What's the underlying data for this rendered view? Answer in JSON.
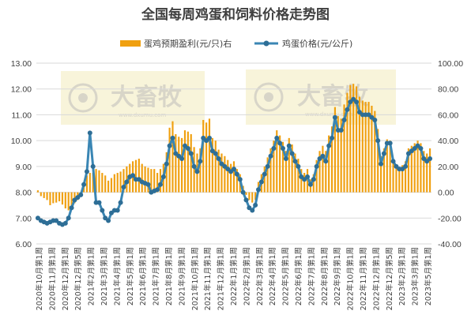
{
  "chart_data": {
    "type": "bar+line",
    "title": "全国每周鸡蛋和饲料价格走势图",
    "watermark": {
      "text": "大畜牧",
      "url": "www.dxumu.com"
    },
    "legend": {
      "placement": "top",
      "bar_label": "蛋鸡预期盈利(元/只)右",
      "line_label": "鸡蛋价格(元/公斤)"
    },
    "colors": {
      "bar": "#f0a010",
      "line": "#3a86b4",
      "marker": "#2e6e96",
      "watermark_bg": "#f7f3d6"
    },
    "left_axis": {
      "min": 6,
      "max": 13,
      "step": 1,
      "decimals": 2,
      "tick_labels": [
        "6.00",
        "7.00",
        "8.00",
        "9.00",
        "10.00",
        "11.00",
        "12.00",
        "13.00"
      ]
    },
    "right_axis": {
      "min": -40,
      "max": 100,
      "step": 20,
      "decimals": 2,
      "tick_labels": [
        "-40.00",
        "-20.00",
        "0.00",
        "20.00",
        "40.00",
        "60.00",
        "80.00",
        "100.00"
      ]
    },
    "x_labels": [
      "2020年10月第1周",
      "2020年11月第1周",
      "2020年12月第1周",
      "2020年12月第5周",
      "2021年2月第1周",
      "2021年3月第1周",
      "2021年4月第1周",
      "2021年5月第1周",
      "2021年6月第1周",
      "2021年7月第1周",
      "2021年8月第1周",
      "2021年9月第1周",
      "2021年10月第1周",
      "2021年11月第1周",
      "2021年12月第1周",
      "2022年1月第1周",
      "2022年2月第1周",
      "2022年3月第1周",
      "2022年4月第1周",
      "2022年5月第1周",
      "2022年6月第1周",
      "2022年7月第1周",
      "2022年8月第1周",
      "2022年9月第1周",
      "2022年10月第1周",
      "2022年11月第1周",
      "2022年12月第1周",
      "2022年12月第5周",
      "2023年2月第1周",
      "2023年3月第1周",
      "2023年5月第1周"
    ],
    "egg_price": [
      7.0,
      6.9,
      6.85,
      6.8,
      6.85,
      6.9,
      6.9,
      6.8,
      6.75,
      6.8,
      7.0,
      7.4,
      7.7,
      7.8,
      7.9,
      8.3,
      8.8,
      10.3,
      9.0,
      7.6,
      7.6,
      7.3,
      7.0,
      6.9,
      7.2,
      7.3,
      7.3,
      7.6,
      8.2,
      8.4,
      8.6,
      8.65,
      8.5,
      8.5,
      8.4,
      8.35,
      8.3,
      8.0,
      8.05,
      8.1,
      8.3,
      8.6,
      9.1,
      9.8,
      10.1,
      9.5,
      9.4,
      9.3,
      9.8,
      9.7,
      9.5,
      9.0,
      8.8,
      9.2,
      10.1,
      10.0,
      10.1,
      9.6,
      9.5,
      9.3,
      9.1,
      9.0,
      8.9,
      8.8,
      8.9,
      8.7,
      8.5,
      8.0,
      7.7,
      7.4,
      7.3,
      7.5,
      8.1,
      8.4,
      8.7,
      9.0,
      9.4,
      9.7,
      10.1,
      9.9,
      9.7,
      9.3,
      9.8,
      9.5,
      9.2,
      9.0,
      8.6,
      8.5,
      8.6,
      8.3,
      8.5,
      9.0,
      9.3,
      9.4,
      9.2,
      9.8,
      10.1,
      10.9,
      10.4,
      10.4,
      10.8,
      11.2,
      11.5,
      11.6,
      11.5,
      11.1,
      11.0,
      11.0,
      11.0,
      10.9,
      10.8,
      10.0,
      9.1,
      9.5,
      9.9,
      9.9,
      9.2,
      9.0,
      8.9,
      8.9,
      9.0,
      9.5,
      9.6,
      9.7,
      9.8,
      9.7,
      9.3,
      9.2,
      9.3
    ],
    "layer_profit": [
      1.5,
      -3.0,
      -4.5,
      -6.0,
      -10.0,
      -8.5,
      -8.0,
      -7.0,
      -9.5,
      -12.5,
      -14.0,
      -12.0,
      -8.5,
      -6.0,
      -3.0,
      6.0,
      13.0,
      15.0,
      15.0,
      18.0,
      17.0,
      15.0,
      13.0,
      9.0,
      11.0,
      14.0,
      15.0,
      16.0,
      18.0,
      20.0,
      22.0,
      24.0,
      25.0,
      26.0,
      22.0,
      20.0,
      19.0,
      18.0,
      18.0,
      15.0,
      18.0,
      22.0,
      31.0,
      50.0,
      55.0,
      45.0,
      43.0,
      42.0,
      48.0,
      47.0,
      45.0,
      35.0,
      30.0,
      34.0,
      56.0,
      54.0,
      57.0,
      42.0,
      40.0,
      33.0,
      30.0,
      28.0,
      25.0,
      22.0,
      24.0,
      18.0,
      14.0,
      5.0,
      -2.0,
      -6.0,
      -8.0,
      -6.0,
      8.0,
      14.0,
      20.0,
      27.0,
      34.0,
      40.0,
      48.0,
      44.0,
      39.0,
      32.0,
      42.0,
      37.0,
      30.0,
      26.0,
      18.0,
      15.0,
      18.0,
      10.0,
      14.0,
      25.0,
      32.0,
      36.0,
      32.0,
      44.0,
      51.0,
      66.0,
      59.0,
      57.0,
      68.0,
      77.0,
      83.0,
      84.0,
      82.0,
      74.0,
      71.0,
      70.0,
      70.0,
      67.0,
      63.0,
      49.0,
      28.0,
      34.0,
      41.0,
      40.0,
      24.0,
      20.0,
      19.0,
      21.0,
      24.0,
      34.0,
      36.0,
      38.0,
      40.0,
      38.0,
      32.0,
      30.0,
      34.0
    ]
  }
}
